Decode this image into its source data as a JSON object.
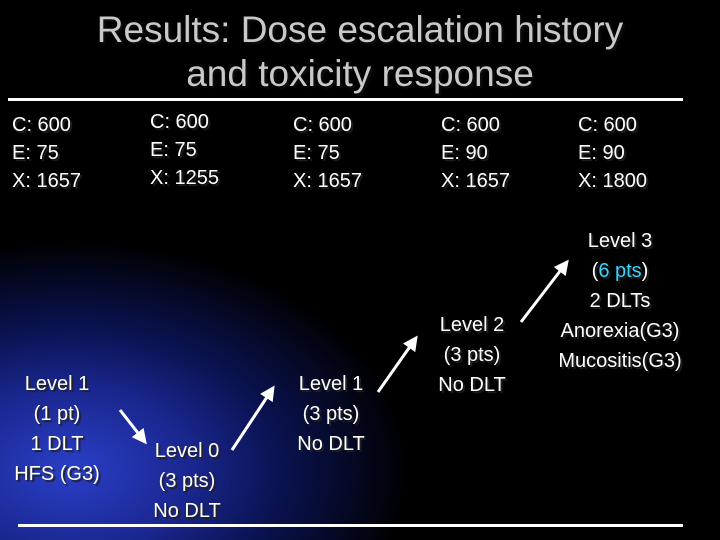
{
  "title": {
    "line1": "Results: Dose escalation history",
    "line2": "and toxicity response"
  },
  "columns": [
    {
      "c": "C: 600",
      "e": "E: 75",
      "x": "X: 1657"
    },
    {
      "c": "C: 600",
      "e": "E: 75",
      "x": "X: 1255"
    },
    {
      "c": "C: 600",
      "e": "E: 75",
      "x": "X: 1657"
    },
    {
      "c": "C: 600",
      "e": "E: 90",
      "x": "X: 1657"
    },
    {
      "c": "C: 600",
      "e": "E: 90",
      "x": "X: 1800"
    }
  ],
  "levels": [
    {
      "lines": [
        "Level 1",
        "(1 pt)",
        "1 DLT",
        "HFS (G3)"
      ]
    },
    {
      "lines": [
        "Level 0",
        "(3 pts)",
        "No DLT"
      ]
    },
    {
      "lines": [
        "Level 1",
        "(3 pts)",
        "No DLT"
      ]
    },
    {
      "lines": [
        "Level 2",
        "(3 pts)",
        "No DLT"
      ]
    },
    {
      "line1": "Level 3",
      "line2_open": "(",
      "line2_highlight": "6 pts",
      "line2_close": ")",
      "line3": "2 DLTs",
      "line4": "Anorexia(G3)",
      "line5": "Mucositis(G3)"
    }
  ],
  "colors": {
    "background": "#000000",
    "gradient": "#2a3fc8",
    "title": "#c9c9c9",
    "text": "#ffffff",
    "highlight": "#3fd0ff"
  }
}
